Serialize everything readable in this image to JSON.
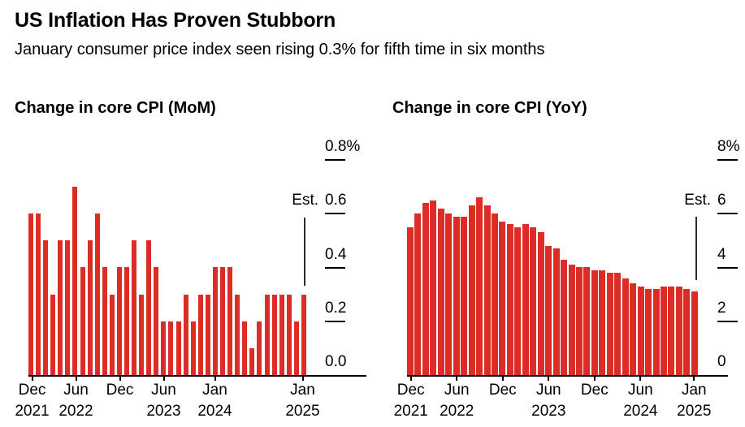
{
  "header": {
    "title": "US Inflation Has Proven Stubborn",
    "subtitle": "January consumer price index seen rising 0.3% for fifth time in six months"
  },
  "accent_color": "#dc2c26",
  "chart_data": [
    {
      "type": "bar",
      "title": "Change in core CPI (MoM)",
      "frequency": "monthly",
      "x": [
        "Dec 2021",
        "Jan 2022",
        "Feb 2022",
        "Mar 2022",
        "Apr 2022",
        "May 2022",
        "Jun 2022",
        "Jul 2022",
        "Aug 2022",
        "Sep 2022",
        "Oct 2022",
        "Nov 2022",
        "Dec 2022",
        "Jan 2023",
        "Feb 2023",
        "Mar 2023",
        "Apr 2023",
        "May 2023",
        "Jun 2023",
        "Jul 2023",
        "Aug 2023",
        "Sep 2023",
        "Oct 2023",
        "Nov 2023",
        "Dec 2023",
        "Jan 2024",
        "Feb 2024",
        "Mar 2024",
        "Apr 2024",
        "May 2024",
        "Jun 2024",
        "Jul 2024",
        "Aug 2024",
        "Sep 2024",
        "Oct 2024",
        "Nov 2024",
        "Dec 2024",
        "Jan 2025"
      ],
      "values": [
        0.6,
        0.6,
        0.5,
        0.3,
        0.5,
        0.5,
        0.7,
        0.4,
        0.5,
        0.6,
        0.4,
        0.3,
        0.4,
        0.4,
        0.5,
        0.3,
        0.5,
        0.4,
        0.2,
        0.2,
        0.2,
        0.3,
        0.2,
        0.3,
        0.3,
        0.4,
        0.4,
        0.4,
        0.3,
        0.2,
        0.1,
        0.2,
        0.3,
        0.3,
        0.3,
        0.3,
        0.2,
        0.3
      ],
      "ylim": [
        0,
        0.8
      ],
      "yticks": [
        "0.8%",
        "0.6",
        "0.4",
        "0.2",
        "0.0"
      ],
      "ytick_values": [
        0.8,
        0.6,
        0.4,
        0.2,
        0.0
      ],
      "xticks": [
        {
          "month": 0,
          "line1": "Dec",
          "line2": "2021"
        },
        {
          "month": 6,
          "line1": "Jun",
          "line2": "2022"
        },
        {
          "month": 12,
          "line1": "Dec",
          "line2": ""
        },
        {
          "month": 18,
          "line1": "Jun",
          "line2": "2023"
        },
        {
          "month": 25,
          "line1": "Jan",
          "line2": "2024"
        },
        {
          "month": 37,
          "line1": "Jan",
          "line2": "2025"
        }
      ],
      "annotation": {
        "label": "Est.",
        "applies_to": "Jan 2025",
        "value": 0.3
      },
      "legend": "none",
      "grid": "off"
    },
    {
      "type": "bar",
      "title": "Change in core CPI (YoY)",
      "frequency": "monthly",
      "x": [
        "Dec 2021",
        "Jan 2022",
        "Feb 2022",
        "Mar 2022",
        "Apr 2022",
        "May 2022",
        "Jun 2022",
        "Jul 2022",
        "Aug 2022",
        "Sep 2022",
        "Oct 2022",
        "Nov 2022",
        "Dec 2022",
        "Jan 2023",
        "Feb 2023",
        "Mar 2023",
        "Apr 2023",
        "May 2023",
        "Jun 2023",
        "Jul 2023",
        "Aug 2023",
        "Sep 2023",
        "Oct 2023",
        "Nov 2023",
        "Dec 2023",
        "Jan 2024",
        "Feb 2024",
        "Mar 2024",
        "Apr 2024",
        "May 2024",
        "Jun 2024",
        "Jul 2024",
        "Aug 2024",
        "Sep 2024",
        "Oct 2024",
        "Nov 2024",
        "Dec 2024",
        "Jan 2025"
      ],
      "values": [
        5.5,
        6.0,
        6.4,
        6.5,
        6.2,
        6.0,
        5.9,
        5.9,
        6.3,
        6.6,
        6.3,
        6.0,
        5.7,
        5.6,
        5.5,
        5.6,
        5.5,
        5.3,
        4.8,
        4.7,
        4.3,
        4.1,
        4.0,
        4.0,
        3.9,
        3.9,
        3.8,
        3.8,
        3.6,
        3.4,
        3.3,
        3.2,
        3.2,
        3.3,
        3.3,
        3.3,
        3.2,
        3.1
      ],
      "ylim": [
        0,
        8
      ],
      "yticks": [
        "8%",
        "6",
        "4",
        "2",
        "0"
      ],
      "ytick_values": [
        8,
        6,
        4,
        2,
        0
      ],
      "xticks": [
        {
          "month": 0,
          "line1": "Dec",
          "line2": "2021"
        },
        {
          "month": 6,
          "line1": "Jun",
          "line2": "2022"
        },
        {
          "month": 12,
          "line1": "Dec",
          "line2": ""
        },
        {
          "month": 18,
          "line1": "Jun",
          "line2": "2023"
        },
        {
          "month": 24,
          "line1": "Dec",
          "line2": ""
        },
        {
          "month": 30,
          "line1": "Jun",
          "line2": "2024"
        },
        {
          "month": 37,
          "line1": "Jan",
          "line2": "2025"
        }
      ],
      "annotation": {
        "label": "Est.",
        "applies_to": "Jan 2025",
        "value": 3.1
      },
      "legend": "none",
      "grid": "off"
    }
  ]
}
